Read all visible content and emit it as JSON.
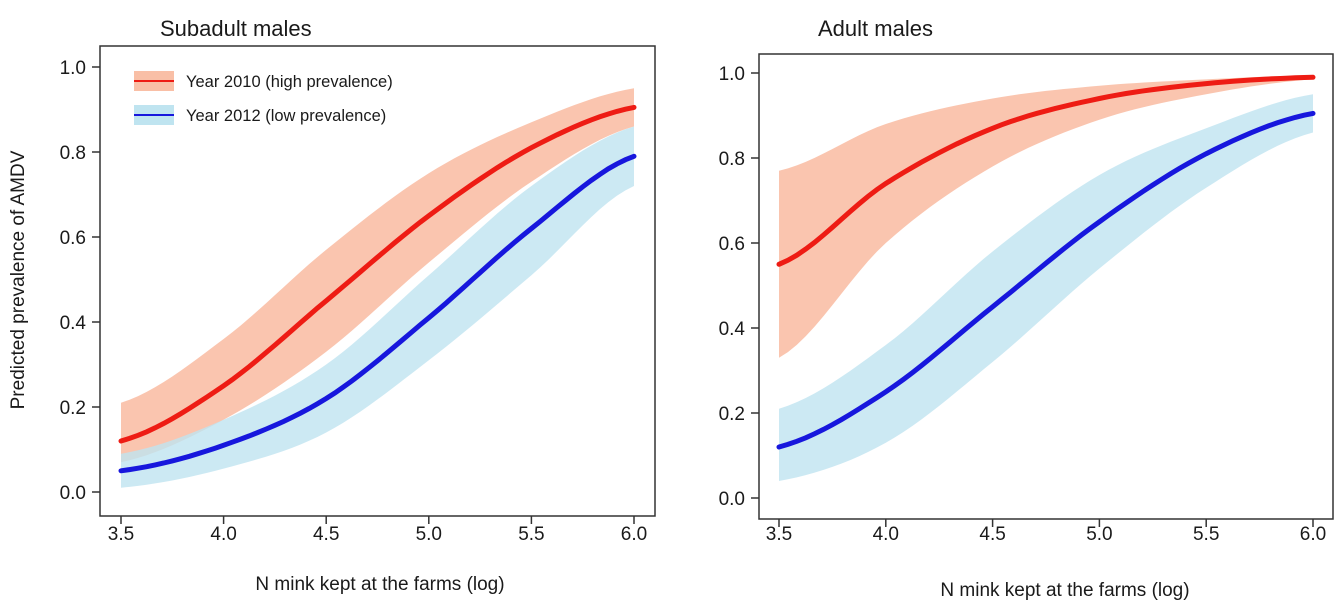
{
  "colors": {
    "red_line": "#ee1c14",
    "red_band": "#f9bfa6",
    "blue_line": "#1717dd",
    "blue_band": "#bfe4f0",
    "axis": "#333333"
  },
  "chart_data": [
    {
      "type": "line",
      "title": "Subadult males",
      "xlabel": "N mink kept at the farms (log)",
      "ylabel": "Predicted prevalence of AMDV",
      "xlim": [
        3.5,
        6.0
      ],
      "ylim": [
        0.0,
        1.0
      ],
      "x_ticks": [
        "3.5",
        "4.0",
        "4.5",
        "5.0",
        "5.5",
        "6.0"
      ],
      "y_ticks": [
        "0.0",
        "0.2",
        "0.4",
        "0.6",
        "0.8",
        "1.0"
      ],
      "grid": false,
      "legend_position": "top-left",
      "series": [
        {
          "name": "Year 2010 (high prevalence)",
          "color": "red",
          "x": [
            3.5,
            4.0,
            4.5,
            5.0,
            5.5,
            6.0
          ],
          "y": [
            0.12,
            0.25,
            0.45,
            0.65,
            0.81,
            0.905
          ],
          "lower": [
            0.07,
            0.17,
            0.33,
            0.54,
            0.73,
            0.86
          ],
          "upper": [
            0.21,
            0.36,
            0.57,
            0.75,
            0.87,
            0.95
          ]
        },
        {
          "name": "Year 2012 (low prevalence)",
          "color": "blue",
          "x": [
            3.5,
            4.0,
            4.5,
            5.0,
            5.5,
            6.0
          ],
          "y": [
            0.05,
            0.11,
            0.22,
            0.41,
            0.62,
            0.79
          ],
          "lower": [
            0.01,
            0.055,
            0.14,
            0.31,
            0.51,
            0.72
          ],
          "upper": [
            0.09,
            0.17,
            0.3,
            0.51,
            0.72,
            0.86
          ]
        }
      ]
    },
    {
      "type": "line",
      "title": "Adult males",
      "xlabel": "N mink kept at the farms (log)",
      "ylabel": "",
      "xlim": [
        3.5,
        6.0
      ],
      "ylim": [
        0.0,
        1.0
      ],
      "x_ticks": [
        "3.5",
        "4.0",
        "4.5",
        "5.0",
        "5.5",
        "6.0"
      ],
      "y_ticks": [
        "0.0",
        "0.2",
        "0.4",
        "0.6",
        "0.8",
        "1.0"
      ],
      "grid": false,
      "series": [
        {
          "name": "Year 2010 (high prevalence)",
          "color": "red",
          "x": [
            3.5,
            4.0,
            4.5,
            5.0,
            5.5,
            6.0
          ],
          "y": [
            0.55,
            0.74,
            0.87,
            0.94,
            0.975,
            0.99
          ],
          "lower": [
            0.33,
            0.6,
            0.78,
            0.89,
            0.95,
            0.985
          ],
          "upper": [
            0.77,
            0.88,
            0.94,
            0.97,
            0.985,
            0.995
          ]
        },
        {
          "name": "Year 2012 (low prevalence)",
          "color": "blue",
          "x": [
            3.5,
            4.0,
            4.5,
            5.0,
            5.5,
            6.0
          ],
          "y": [
            0.12,
            0.25,
            0.45,
            0.65,
            0.81,
            0.905
          ],
          "lower": [
            0.04,
            0.13,
            0.32,
            0.54,
            0.73,
            0.86
          ],
          "upper": [
            0.21,
            0.36,
            0.58,
            0.76,
            0.87,
            0.95
          ]
        }
      ]
    }
  ]
}
